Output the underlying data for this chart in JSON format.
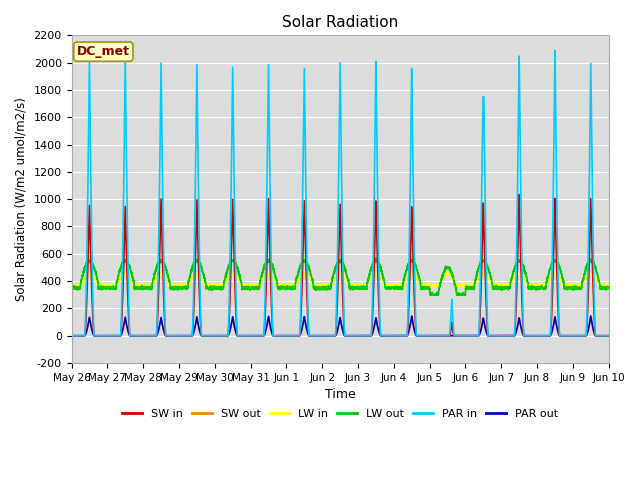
{
  "title": "Solar Radiation",
  "ylabel": "Solar Radiation (W/m2 umol/m2/s)",
  "xlabel": "Time",
  "ylim": [
    -200,
    2200
  ],
  "yticks": [
    -200,
    0,
    200,
    400,
    600,
    800,
    1000,
    1200,
    1400,
    1600,
    1800,
    2000,
    2200
  ],
  "x_tick_labels": [
    "May 26",
    "May 27",
    "May 28",
    "May 29",
    "May 30",
    "May 31",
    "Jun 1",
    "Jun 2",
    "Jun 3",
    "Jun 4",
    "Jun 5",
    "Jun 6",
    "Jun 7",
    "Jun 8",
    "Jun 9",
    "Jun 10"
  ],
  "num_days": 15,
  "points_per_day": 288,
  "background_color": "#dcdcdc",
  "grid_color": "#ffffff",
  "series": {
    "SW_in": {
      "color": "#cc0000",
      "label": "SW in"
    },
    "SW_out": {
      "color": "#ff8800",
      "label": "SW out"
    },
    "LW_in": {
      "color": "#ffff00",
      "label": "LW in"
    },
    "LW_out": {
      "color": "#00cc00",
      "label": "LW out"
    },
    "PAR_in": {
      "color": "#00ccff",
      "label": "PAR in"
    },
    "PAR_out": {
      "color": "#0000cc",
      "label": "PAR out"
    }
  },
  "dc_met_label": "DC_met",
  "dc_met_facecolor": "#ffffc8",
  "dc_met_edgecolor": "#999900",
  "dc_met_textcolor": "#880000"
}
